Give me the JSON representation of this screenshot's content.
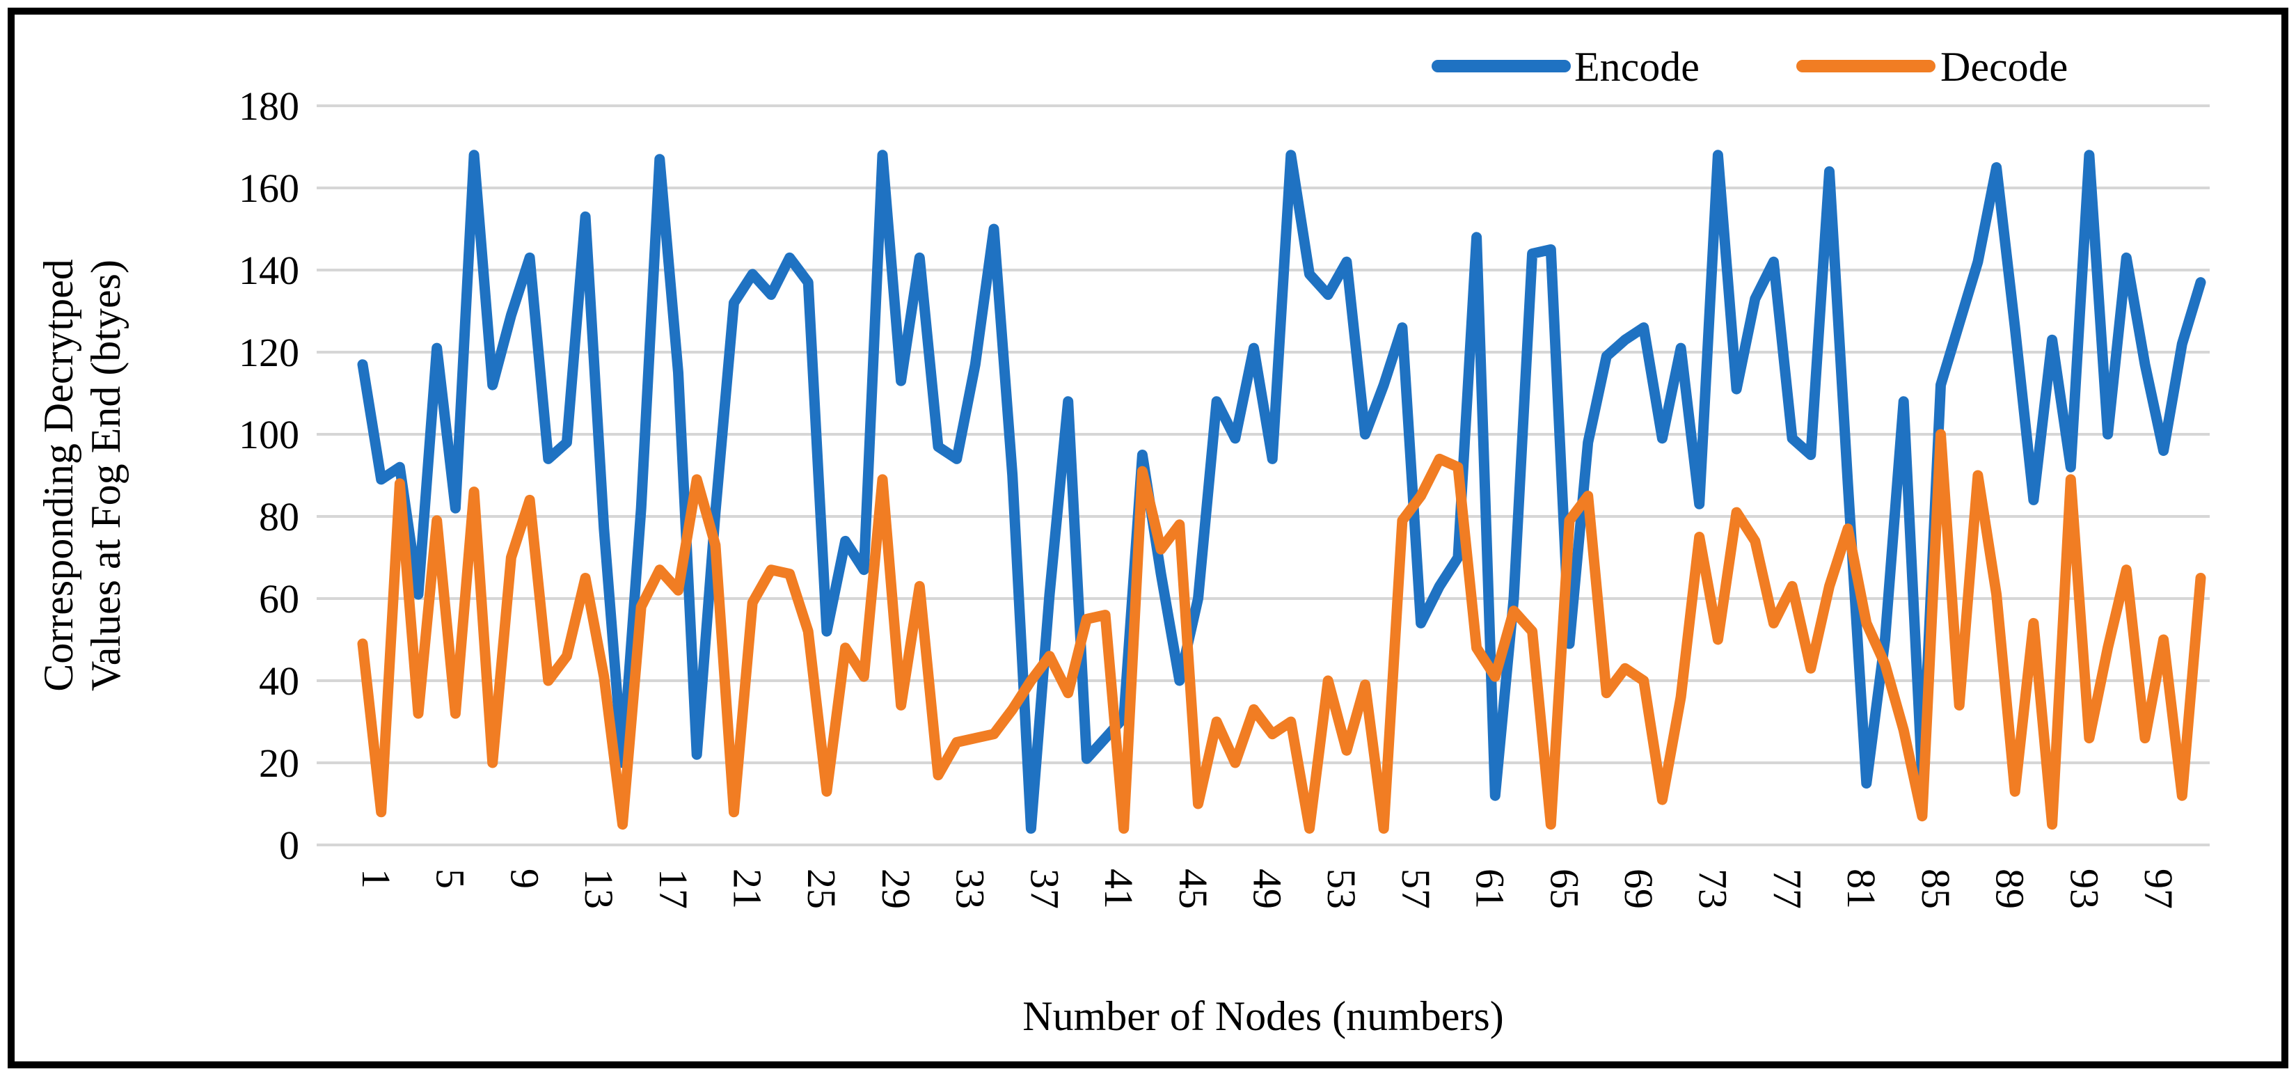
{
  "chart_data": {
    "type": "line",
    "title": "",
    "xlabel": "Number of Nodes (numbers)",
    "ylabel_line1": "Corresponding Decrytped",
    "ylabel_line2": "Values at Fog End (btyes)",
    "x": [
      1,
      2,
      3,
      4,
      5,
      6,
      7,
      8,
      9,
      10,
      11,
      12,
      13,
      14,
      15,
      16,
      17,
      18,
      19,
      20,
      21,
      22,
      23,
      24,
      25,
      26,
      27,
      28,
      29,
      30,
      31,
      32,
      33,
      34,
      35,
      36,
      37,
      38,
      39,
      40,
      41,
      42,
      43,
      44,
      45,
      46,
      47,
      48,
      49,
      50,
      51,
      52,
      53,
      54,
      55,
      56,
      57,
      58,
      59,
      60,
      61,
      62,
      63,
      64,
      65,
      66,
      67,
      68,
      69,
      70,
      71,
      72,
      73,
      74,
      75,
      76,
      77,
      78,
      79,
      80,
      81,
      82,
      83,
      84,
      85,
      86,
      87,
      88,
      89,
      90,
      91,
      92,
      93,
      94,
      95,
      96,
      97,
      98,
      99,
      100
    ],
    "x_tick_labels": [
      1,
      5,
      9,
      13,
      17,
      21,
      25,
      29,
      33,
      37,
      41,
      45,
      49,
      53,
      57,
      61,
      65,
      69,
      73,
      77,
      81,
      85,
      89,
      93,
      97
    ],
    "y_ticks": [
      0,
      20,
      40,
      60,
      80,
      100,
      120,
      140,
      160,
      180
    ],
    "ylim": [
      0,
      180
    ],
    "grid": true,
    "legend_position": "top-right",
    "series": [
      {
        "name": "Encode",
        "color": "#1F72C2",
        "values": [
          117,
          89,
          92,
          61,
          121,
          82,
          168,
          112,
          129,
          143,
          94,
          98,
          153,
          77,
          20,
          82,
          167,
          115,
          22,
          81,
          132,
          139,
          134,
          143,
          137,
          52,
          74,
          67,
          168,
          113,
          143,
          97,
          94,
          117,
          150,
          90,
          4,
          61,
          108,
          21,
          26,
          31,
          95,
          66,
          40,
          60,
          108,
          99,
          121,
          94,
          168,
          139,
          134,
          142,
          100,
          112,
          126,
          54,
          63,
          70,
          148,
          12,
          60,
          144,
          145,
          49,
          98,
          119,
          123,
          126,
          99,
          121,
          83,
          168,
          111,
          133,
          142,
          99,
          95,
          164,
          88,
          15,
          50,
          108,
          16,
          112,
          127,
          142,
          165,
          126,
          84,
          123,
          92,
          168,
          100,
          143,
          117,
          96,
          122,
          137
        ]
      },
      {
        "name": "Decode",
        "color": "#F17D23",
        "values": [
          49,
          8,
          88,
          32,
          79,
          32,
          86,
          20,
          70,
          84,
          40,
          46,
          65,
          41,
          5,
          58,
          67,
          62,
          89,
          73,
          8,
          59,
          67,
          66,
          52,
          13,
          48,
          41,
          89,
          34,
          63,
          17,
          25,
          26,
          27,
          33,
          40,
          46,
          37,
          55,
          56,
          4,
          91,
          72,
          78,
          10,
          30,
          20,
          33,
          27,
          30,
          4,
          40,
          23,
          39,
          4,
          79,
          85,
          94,
          92,
          48,
          41,
          57,
          52,
          5,
          79,
          85,
          37,
          43,
          40,
          11,
          36,
          75,
          50,
          81,
          74,
          54,
          63,
          43,
          63,
          77,
          54,
          44,
          28,
          7,
          100,
          34,
          90,
          61,
          13,
          54,
          5,
          89,
          26,
          48,
          67,
          26,
          50,
          12,
          65
        ]
      }
    ]
  },
  "legend": {
    "encode_label": "Encode",
    "decode_label": "Decode"
  },
  "axes": {
    "x_title": "Number of Nodes (numbers)",
    "y_title_line1": "Corresponding Decrytped",
    "y_title_line2": "Values at Fog End (btyes)"
  },
  "colors": {
    "encode": "#1F72C2",
    "decode": "#F17D23",
    "gridline": "#D6D6D6",
    "frame": "#000000",
    "background": "#FFFFFF"
  }
}
